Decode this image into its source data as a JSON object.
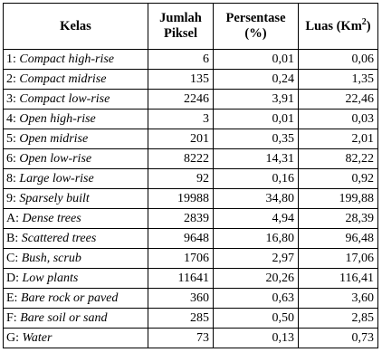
{
  "table": {
    "headers": {
      "kelas": "Kelas",
      "jumlah_line1": "Jumlah",
      "jumlah_line2": "Piksel",
      "persentase_line1": "Persentase",
      "persentase_line2": "(%)",
      "luas_text": "Luas (Km",
      "luas_sup": "2",
      "luas_close": ")"
    },
    "rows": [
      {
        "code": "1:",
        "name": "Compact high-rise",
        "jumlah": "6",
        "persentase": "0,01",
        "luas": "0,06"
      },
      {
        "code": "2:",
        "name": "Compact midrise",
        "jumlah": "135",
        "persentase": "0,24",
        "luas": "1,35"
      },
      {
        "code": "3:",
        "name": "Compact low-rise",
        "jumlah": "2246",
        "persentase": "3,91",
        "luas": "22,46"
      },
      {
        "code": "4:",
        "name": "Open high-rise",
        "jumlah": "3",
        "persentase": "0,01",
        "luas": "0,03"
      },
      {
        "code": "5:",
        "name": "Open midrise",
        "jumlah": "201",
        "persentase": "0,35",
        "luas": "2,01"
      },
      {
        "code": "6:",
        "name": "Open low-rise",
        "jumlah": "8222",
        "persentase": "14,31",
        "luas": "82,22"
      },
      {
        "code": "8:",
        "name": "Large low-rise",
        "jumlah": "92",
        "persentase": "0,16",
        "luas": "0,92"
      },
      {
        "code": "9:",
        "name": "Sparsely built",
        "jumlah": "19988",
        "persentase": "34,80",
        "luas": "199,88"
      },
      {
        "code": "A:",
        "name": "Dense trees",
        "jumlah": "2839",
        "persentase": "4,94",
        "luas": "28,39"
      },
      {
        "code": "B:",
        "name": "Scattered trees",
        "jumlah": "9648",
        "persentase": "16,80",
        "luas": "96,48"
      },
      {
        "code": "C:",
        "name": "Bush, scrub",
        "jumlah": "1706",
        "persentase": "2,97",
        "luas": "17,06"
      },
      {
        "code": "D:",
        "name": "Low plants",
        "jumlah": "11641",
        "persentase": "20,26",
        "luas": "116,41"
      },
      {
        "code": "E:",
        "name": "Bare rock or paved",
        "jumlah": "360",
        "persentase": "0,63",
        "luas": "3,60"
      },
      {
        "code": "F:",
        "name": "Bare soil or sand",
        "jumlah": "285",
        "persentase": "0,50",
        "luas": "2,85"
      },
      {
        "code": "G:",
        "name": "Water",
        "jumlah": "73",
        "persentase": "0,13",
        "luas": "0,73"
      }
    ]
  }
}
